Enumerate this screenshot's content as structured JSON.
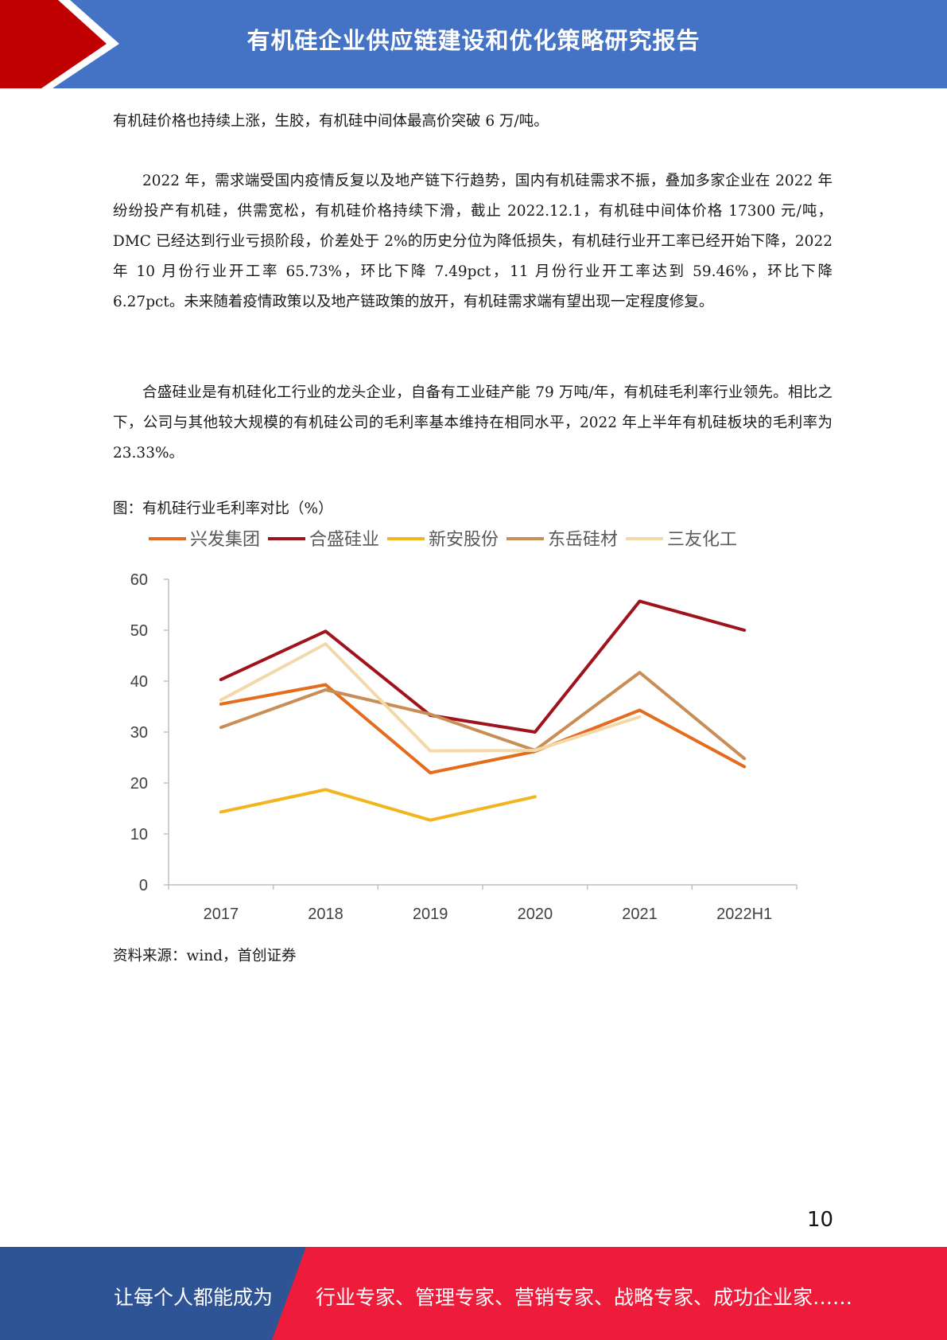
{
  "header": {
    "title": "有机硅企业供应链建设和优化策略研究报告",
    "colors": {
      "band": "#4472c4",
      "accent": "#c00000"
    }
  },
  "body": {
    "p1": "有机硅价格也持续上涨，生胶，有机硅中间体最高价突破 6 万/吨。",
    "p2": "2022 年，需求端受国内疫情反复以及地产链下行趋势，国内有机硅需求不振，叠加多家企业在 2022 年纷纷投产有机硅，供需宽松，有机硅价格持续下滑，截止 2022.12.1，有机硅中间体价格 17300 元/吨，DMC 已经达到行业亏损阶段，价差处于 2%的历史分位为降低损失，有机硅行业开工率已经开始下降，2022 年 10 月份行业开工率 65.73%，环比下降 7.49pct，11 月份行业开工率达到 59.46%，环比下降 6.27pct。未来随着疫情政策以及地产链政策的放开，有机硅需求端有望出现一定程度修复。",
    "p3": "合盛硅业是有机硅化工行业的龙头企业，自备有工业硅产能 79 万吨/年，有机硅毛利率行业领先。相比之下，公司与其他较大规模的有机硅公司的毛利率基本维持在相同水平，2022 年上半年有机硅板块的毛利率为 23.33%。",
    "figure_caption": "图：有机硅行业毛利率对比（%）",
    "source": "资料来源：wind，首创证券"
  },
  "chart_data": {
    "type": "line",
    "title": "",
    "xlabel": "",
    "ylabel": "",
    "categories": [
      "2017",
      "2018",
      "2019",
      "2020",
      "2021",
      "2022H1"
    ],
    "ylim": [
      0,
      60
    ],
    "yticks": [
      "0",
      "10",
      "20",
      "30",
      "40",
      "50",
      "60"
    ],
    "grid": false,
    "legend_position": "top",
    "series": [
      {
        "name": "兴发集团",
        "color": "#e46c1e",
        "values": [
          35.5,
          39.3,
          22,
          26.2,
          34.3,
          23.2
        ]
      },
      {
        "name": "合盛硅业",
        "color": "#a0131c",
        "values": [
          40.3,
          49.8,
          33.3,
          30,
          55.7,
          50
        ]
      },
      {
        "name": "新安股份",
        "color": "#f2b51f",
        "values": [
          14.3,
          18.7,
          12.7,
          17.3,
          null,
          null
        ]
      },
      {
        "name": "东岳硅材",
        "color": "#c98e55",
        "values": [
          30.9,
          38.3,
          33.5,
          26.4,
          41.7,
          24.8
        ]
      },
      {
        "name": "三友化工",
        "color": "#f3d9a9",
        "values": [
          36.3,
          47.3,
          26.3,
          26.4,
          33,
          null
        ]
      }
    ]
  },
  "page_number": "10",
  "footer": {
    "left_text": "让每个人都能成为",
    "right_text": "行业专家、管理专家、营销专家、战略专家、成功企业家……",
    "colors": {
      "left": "#2e5496",
      "right": "#ee1c3a"
    }
  }
}
